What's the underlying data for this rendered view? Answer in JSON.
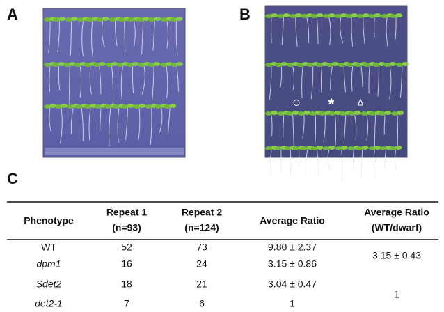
{
  "panels": {
    "a": {
      "label": "A"
    },
    "b": {
      "label": "B",
      "markers": [
        "○",
        "*",
        "Δ"
      ]
    },
    "c": {
      "label": "C"
    }
  },
  "table": {
    "header": [
      [
        "Phenotype"
      ],
      [
        "Repeat 1",
        "(n=93)"
      ],
      [
        "Repeat 2",
        "(n=124)"
      ],
      [
        "Average Ratio"
      ],
      [
        "Average Ratio",
        "(WT/dwarf)"
      ]
    ],
    "rows": [
      [
        "WT",
        52,
        73,
        "9.80 ± 2.37"
      ],
      [
        "dpm1",
        16,
        24,
        "3.15 ± 0.86"
      ],
      [
        "Sdet2",
        18,
        21,
        "3.04 ± 0.47"
      ],
      [
        "det2-1",
        7,
        6,
        1
      ]
    ],
    "merged": [
      "3.15 ± 0.43",
      1
    ]
  }
}
